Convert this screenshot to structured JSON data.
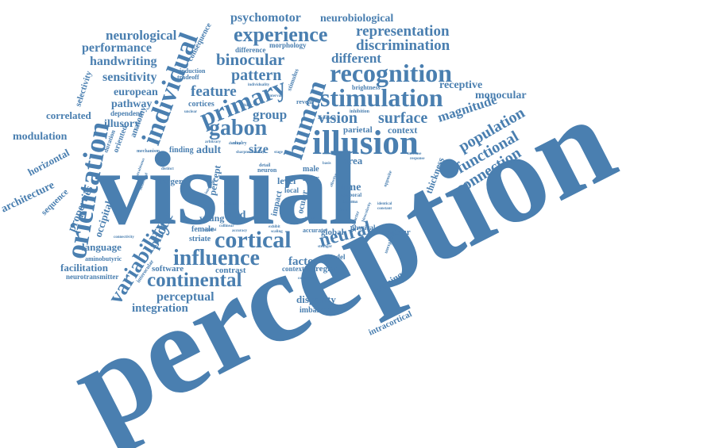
{
  "accent_color": "#4a7fb0",
  "words": {
    "visual": "visual",
    "perception": "perception",
    "illusion": "illusion",
    "recognition": "recognition",
    "stimulation": "stimulation",
    "orientation": "orientation",
    "individual": "individual",
    "human": "human",
    "primary": "primary",
    "gabon": "gabon",
    "cortical": "cortical",
    "influence": "influence",
    "continental": "continental",
    "variability": "variability",
    "experience": "experience",
    "psychomotor": "psychomotor",
    "neurobiological": "neurobiological",
    "representation": "representation",
    "discrimination": "discrimination",
    "neurological": "neurological",
    "consequence": "consequence",
    "performance": "performance",
    "binocular": "binocular",
    "different": "different",
    "handwriting": "handwriting",
    "sensitivity": "sensitivity",
    "pattern": "pattern",
    "receptive": "receptive",
    "monocular": "monocular",
    "magnitude": "magnitude",
    "population": "population",
    "functional": "functional",
    "connection": "connection",
    "feature": "feature",
    "group": "group",
    "vision": "vision",
    "surface": "surface",
    "parietal": "parietal",
    "context": "context",
    "european": "european",
    "pathway": "pathway",
    "selectivity": "selectivity",
    "correlated": "correlated",
    "dependent": "dependent",
    "illusory": "illusory",
    "modulation": "modulation",
    "horizontal": "horizontal",
    "architecture": "architecture",
    "sequence": "sequence",
    "properties": "properties",
    "occipital": "occipital",
    "photic": "photic",
    "language": "language",
    "facilitation": "facilitation",
    "aminobutyric": "aminobutyric",
    "neurotransmitter": "neurotransmitter",
    "integration": "integration",
    "perceptual": "perceptual",
    "software": "software",
    "contrast": "contrast",
    "neural": "neural",
    "factor": "factor",
    "contour": "contour",
    "disparity": "disparity",
    "imbalance": "imbalance",
    "intracortical": "intracortical",
    "learning": "learning",
    "thickness": "thickness",
    "time": "time",
    "area": "area",
    "level": "level",
    "field": "field",
    "percept": "percept",
    "young": "young",
    "adult": "adult",
    "size": "size",
    "global": "global",
    "model": "model",
    "region": "region",
    "contextual": "contextual",
    "physical": "physical",
    "accurate": "accurate",
    "female": "female",
    "striate": "striate",
    "larger": "larger",
    "impact": "impact",
    "ocular": "ocular",
    "local": "local",
    "male": "male",
    "inter": "inter",
    "neuron": "neuron",
    "temporal": "temporal",
    "chiasma": "chiasma",
    "finding": "finding",
    "mechanism": "mechanism",
    "anatomy": "anatomy",
    "oriented": "oriented",
    "duration": "duration",
    "cortices": "cortices",
    "tradeoff": "tradeoff",
    "induction": "induction",
    "difference": "difference",
    "morphology": "morphology",
    "stimulus": "stimulus",
    "brightness": "brightness",
    "inhibition": "inhibition",
    "reveal": "reveal",
    "individuality": "individuality",
    "rivalry": "rivalry",
    "duality": "duality",
    "sharpness": "sharpness",
    "detail": "detail",
    "opposite": "opposite",
    "increase": "increase",
    "response": "response",
    "character": "character",
    "binocularity": "binocularity",
    "connectivity": "connectivity",
    "interocular": "interocular",
    "strabismus": "strabismus",
    "distinct": "distinct",
    "smaller": "smaller",
    "asian": "asian",
    "identical": "identical",
    "constant": "constant",
    "healthy": "healthy",
    "exhibit": "exhibit",
    "scaling": "scaling",
    "stronger": "stronger",
    "reflect": "reflect",
    "unexplored": "unexplored",
    "collinear": "collinear",
    "behavioral": "behavioral",
    "conscious": "conscious",
    "regional": "regional",
    "accuracy": "accuracy",
    "interval": "interval",
    "basis": "basis",
    "ability": "ability",
    "effective": "effective",
    "stage": "stage",
    "unclear": "unclear",
    "arbitrary": "arbitrary",
    "ambiguous": "ambiguous",
    "interaction": "interaction"
  }
}
